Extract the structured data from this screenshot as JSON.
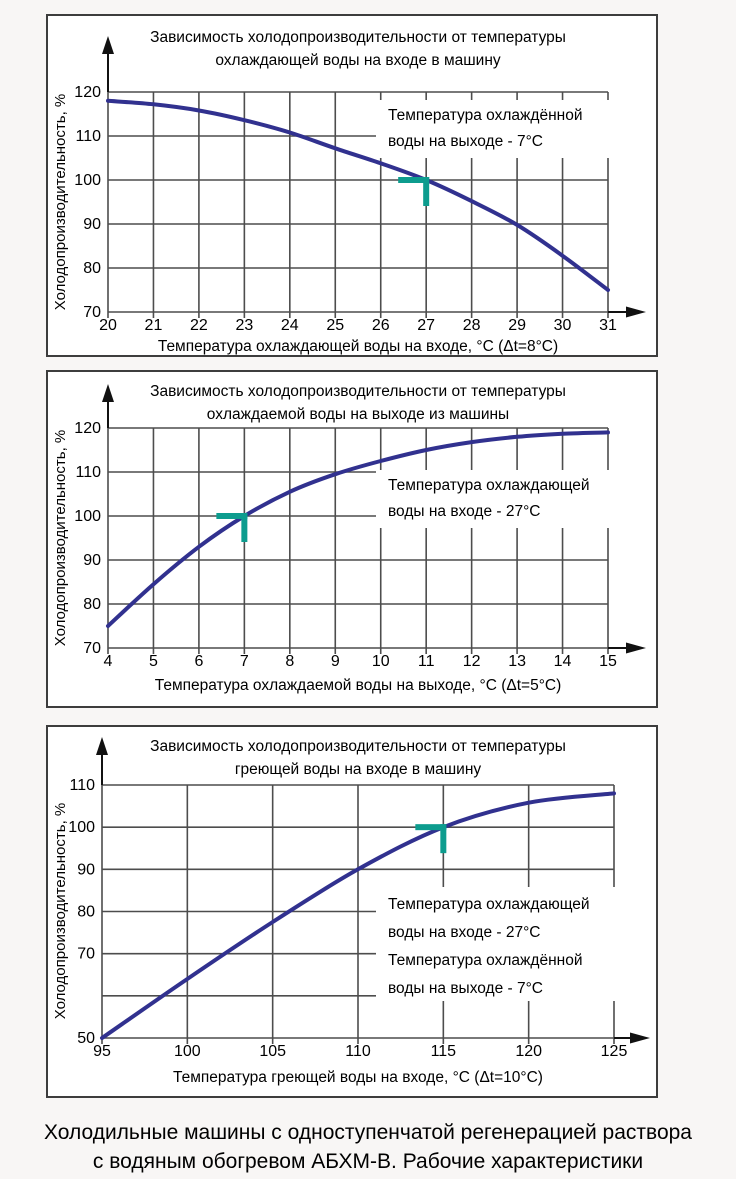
{
  "page": {
    "caption_line1": "Холодильные машины с одноступенчатой регенерацией раствора",
    "caption_line2": "с водяным обогревом АБХМ-В. Рабочие характеристики"
  },
  "colors": {
    "curve": "#31318f",
    "marker": "#0d9c8e",
    "grid": "#4d4d4d",
    "axis": "#111111",
    "text": "#000000",
    "panel_bg": "#ffffff",
    "panel_border": "#3d3d3d",
    "page_bg": "#f8f6f5"
  },
  "chart_data": [
    {
      "type": "line",
      "title_lines": [
        "Зависимость холодопроизводительности от температуры",
        "охлаждающей воды на входе в машину"
      ],
      "xlabel": "Температура охлаждающей воды на входе, °C (Δt=8°C)",
      "ylabel": "Холодопроизводительность, %",
      "xlim": [
        20,
        31
      ],
      "ylim": [
        70,
        120
      ],
      "x_ticks": [
        20,
        21,
        22,
        23,
        24,
        25,
        26,
        27,
        28,
        29,
        30,
        31
      ],
      "y_gridlines": [
        70,
        80,
        90,
        100,
        110,
        120
      ],
      "y_tick_labels": [
        70,
        80,
        90,
        100,
        110,
        120
      ],
      "x": [
        20,
        21,
        22,
        23,
        24,
        25,
        26,
        27,
        28,
        29,
        30,
        31
      ],
      "y": [
        118,
        117.2,
        115.8,
        113.6,
        110.8,
        107.2,
        103.8,
        100,
        95.2,
        89.8,
        82.8,
        75
      ],
      "marker": {
        "x": 27,
        "y": 100
      },
      "annotation_lines": [
        "Температура охлаждённой",
        "воды на выходе - 7°C"
      ],
      "grid": true,
      "legend": "none"
    },
    {
      "type": "line",
      "title_lines": [
        "Зависимость холодопроизводительности от температуры",
        "охлаждаемой воды на выходе из машины"
      ],
      "xlabel": "Температура охлаждаемой воды на выходе, °C (Δt=5°C)",
      "ylabel": "Холодопроизводительность, %",
      "xlim": [
        4,
        15
      ],
      "ylim": [
        70,
        120
      ],
      "x_ticks": [
        4,
        5,
        6,
        7,
        8,
        9,
        10,
        11,
        12,
        13,
        14,
        15
      ],
      "y_gridlines": [
        70,
        80,
        90,
        100,
        110,
        120
      ],
      "y_tick_labels": [
        70,
        80,
        90,
        100,
        110,
        120
      ],
      "x": [
        4,
        5,
        6,
        7,
        8,
        9,
        10,
        11,
        12,
        13,
        14,
        15
      ],
      "y": [
        75,
        84.5,
        93,
        100,
        105.5,
        109.5,
        112.5,
        115,
        116.8,
        118,
        118.7,
        119
      ],
      "marker": {
        "x": 7,
        "y": 100
      },
      "annotation_lines": [
        "Температура охлаждающей",
        "воды на входе - 27°C"
      ],
      "grid": true,
      "legend": "none"
    },
    {
      "type": "line",
      "title_lines": [
        "Зависимость холодопроизводительности от температуры",
        "греющей воды на входе в машину"
      ],
      "xlabel": "Температура греющей воды на входе, °C (Δt=10°C)",
      "ylabel": "Холодопроизводительность, %",
      "xlim": [
        95,
        125
      ],
      "ylim": [
        50,
        110
      ],
      "x_ticks": [
        95,
        100,
        105,
        110,
        115,
        120,
        125
      ],
      "y_gridlines": [
        50,
        60,
        70,
        80,
        90,
        100,
        110
      ],
      "y_tick_labels": [
        50,
        70,
        80,
        90,
        100,
        110
      ],
      "x": [
        95,
        100,
        105,
        110,
        115,
        120,
        125
      ],
      "y": [
        50,
        64,
        77.5,
        90,
        100,
        105.8,
        108
      ],
      "marker": {
        "x": 115,
        "y": 100
      },
      "annotation_lines": [
        "Температура охлаждающей",
        "воды на входе - 27°C",
        "Температура охлаждённой",
        "воды на выходе - 7°C"
      ],
      "grid": true,
      "legend": "none"
    }
  ]
}
